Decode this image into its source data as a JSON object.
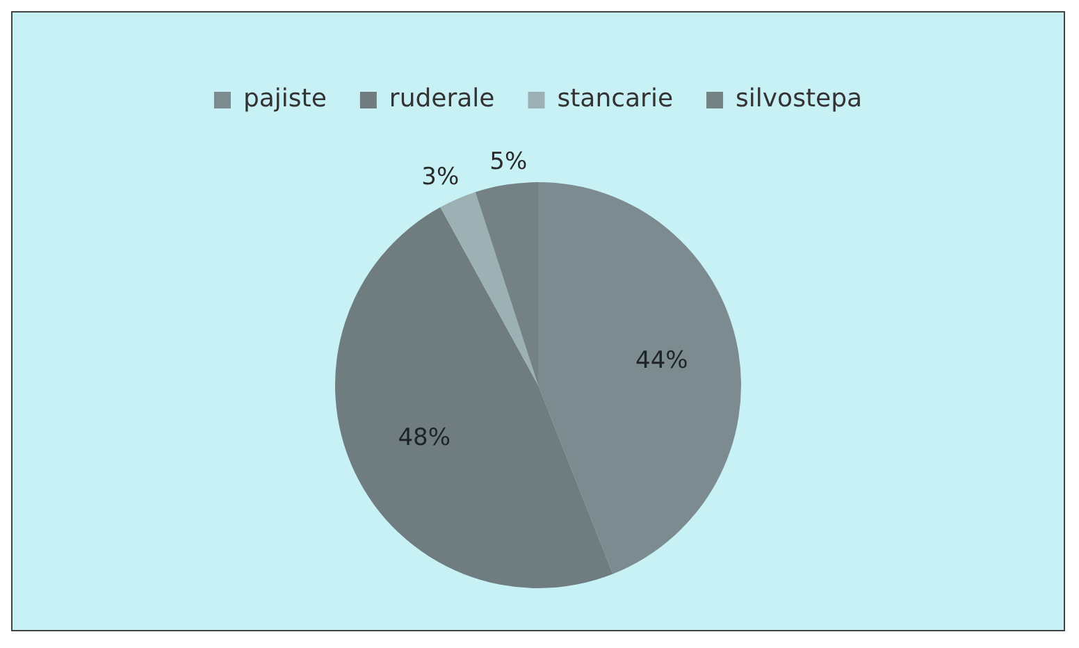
{
  "chart_data": {
    "type": "pie",
    "categories": [
      "pajiste",
      "ruderale",
      "stancarie",
      "silvostepa"
    ],
    "values": [
      44,
      48,
      3,
      5
    ],
    "colors": [
      "#7c8b8f",
      "#6f7c80",
      "#9db0b3",
      "#748185"
    ],
    "value_labels": [
      "44%",
      "48%",
      "3%",
      "5%"
    ],
    "legend": "top"
  }
}
